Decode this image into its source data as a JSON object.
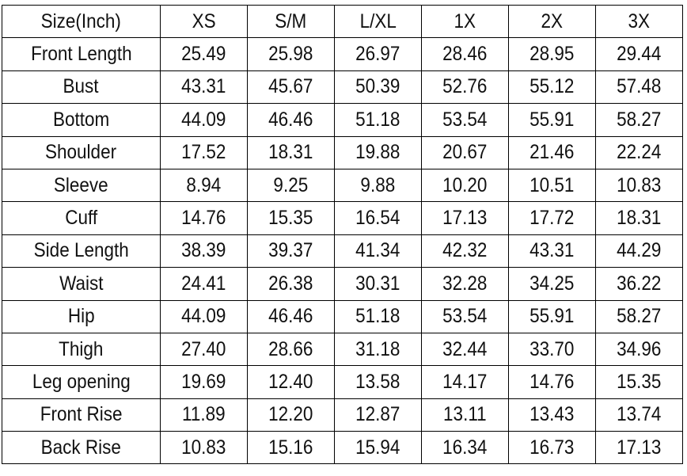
{
  "table": {
    "header": [
      "Size(Inch)",
      "XS",
      "S/M",
      "L/XL",
      "1X",
      "2X",
      "3X"
    ],
    "rows": [
      {
        "label": "Front Length",
        "values": [
          "25.49",
          "25.98",
          "26.97",
          "28.46",
          "28.95",
          "29.44"
        ]
      },
      {
        "label": "Bust",
        "values": [
          "43.31",
          "45.67",
          "50.39",
          "52.76",
          "55.12",
          "57.48"
        ]
      },
      {
        "label": "Bottom",
        "values": [
          "44.09",
          "46.46",
          "51.18",
          "53.54",
          "55.91",
          "58.27"
        ]
      },
      {
        "label": "Shoulder",
        "values": [
          "17.52",
          "18.31",
          "19.88",
          "20.67",
          "21.46",
          "22.24"
        ]
      },
      {
        "label": "Sleeve",
        "values": [
          "8.94",
          "9.25",
          "9.88",
          "10.20",
          "10.51",
          "10.83"
        ]
      },
      {
        "label": "Cuff",
        "values": [
          "14.76",
          "15.35",
          "16.54",
          "17.13",
          "17.72",
          "18.31"
        ]
      },
      {
        "label": "Side Length",
        "values": [
          "38.39",
          "39.37",
          "41.34",
          "42.32",
          "43.31",
          "44.29"
        ]
      },
      {
        "label": "Waist",
        "values": [
          "24.41",
          "26.38",
          "30.31",
          "32.28",
          "34.25",
          "36.22"
        ]
      },
      {
        "label": "Hip",
        "values": [
          "44.09",
          "46.46",
          "51.18",
          "53.54",
          "55.91",
          "58.27"
        ]
      },
      {
        "label": "Thigh",
        "values": [
          "27.40",
          "28.66",
          "31.18",
          "32.44",
          "33.70",
          "34.96"
        ]
      },
      {
        "label": "Leg opening",
        "values": [
          "19.69",
          "12.40",
          "13.58",
          "14.17",
          "14.76",
          "15.35"
        ]
      },
      {
        "label": "Front Rise",
        "values": [
          "11.89",
          "12.20",
          "12.87",
          "13.11",
          "13.43",
          "13.74"
        ]
      },
      {
        "label": "Back Rise",
        "values": [
          "10.83",
          "15.16",
          "15.94",
          "16.34",
          "16.73",
          "17.13"
        ]
      }
    ]
  }
}
